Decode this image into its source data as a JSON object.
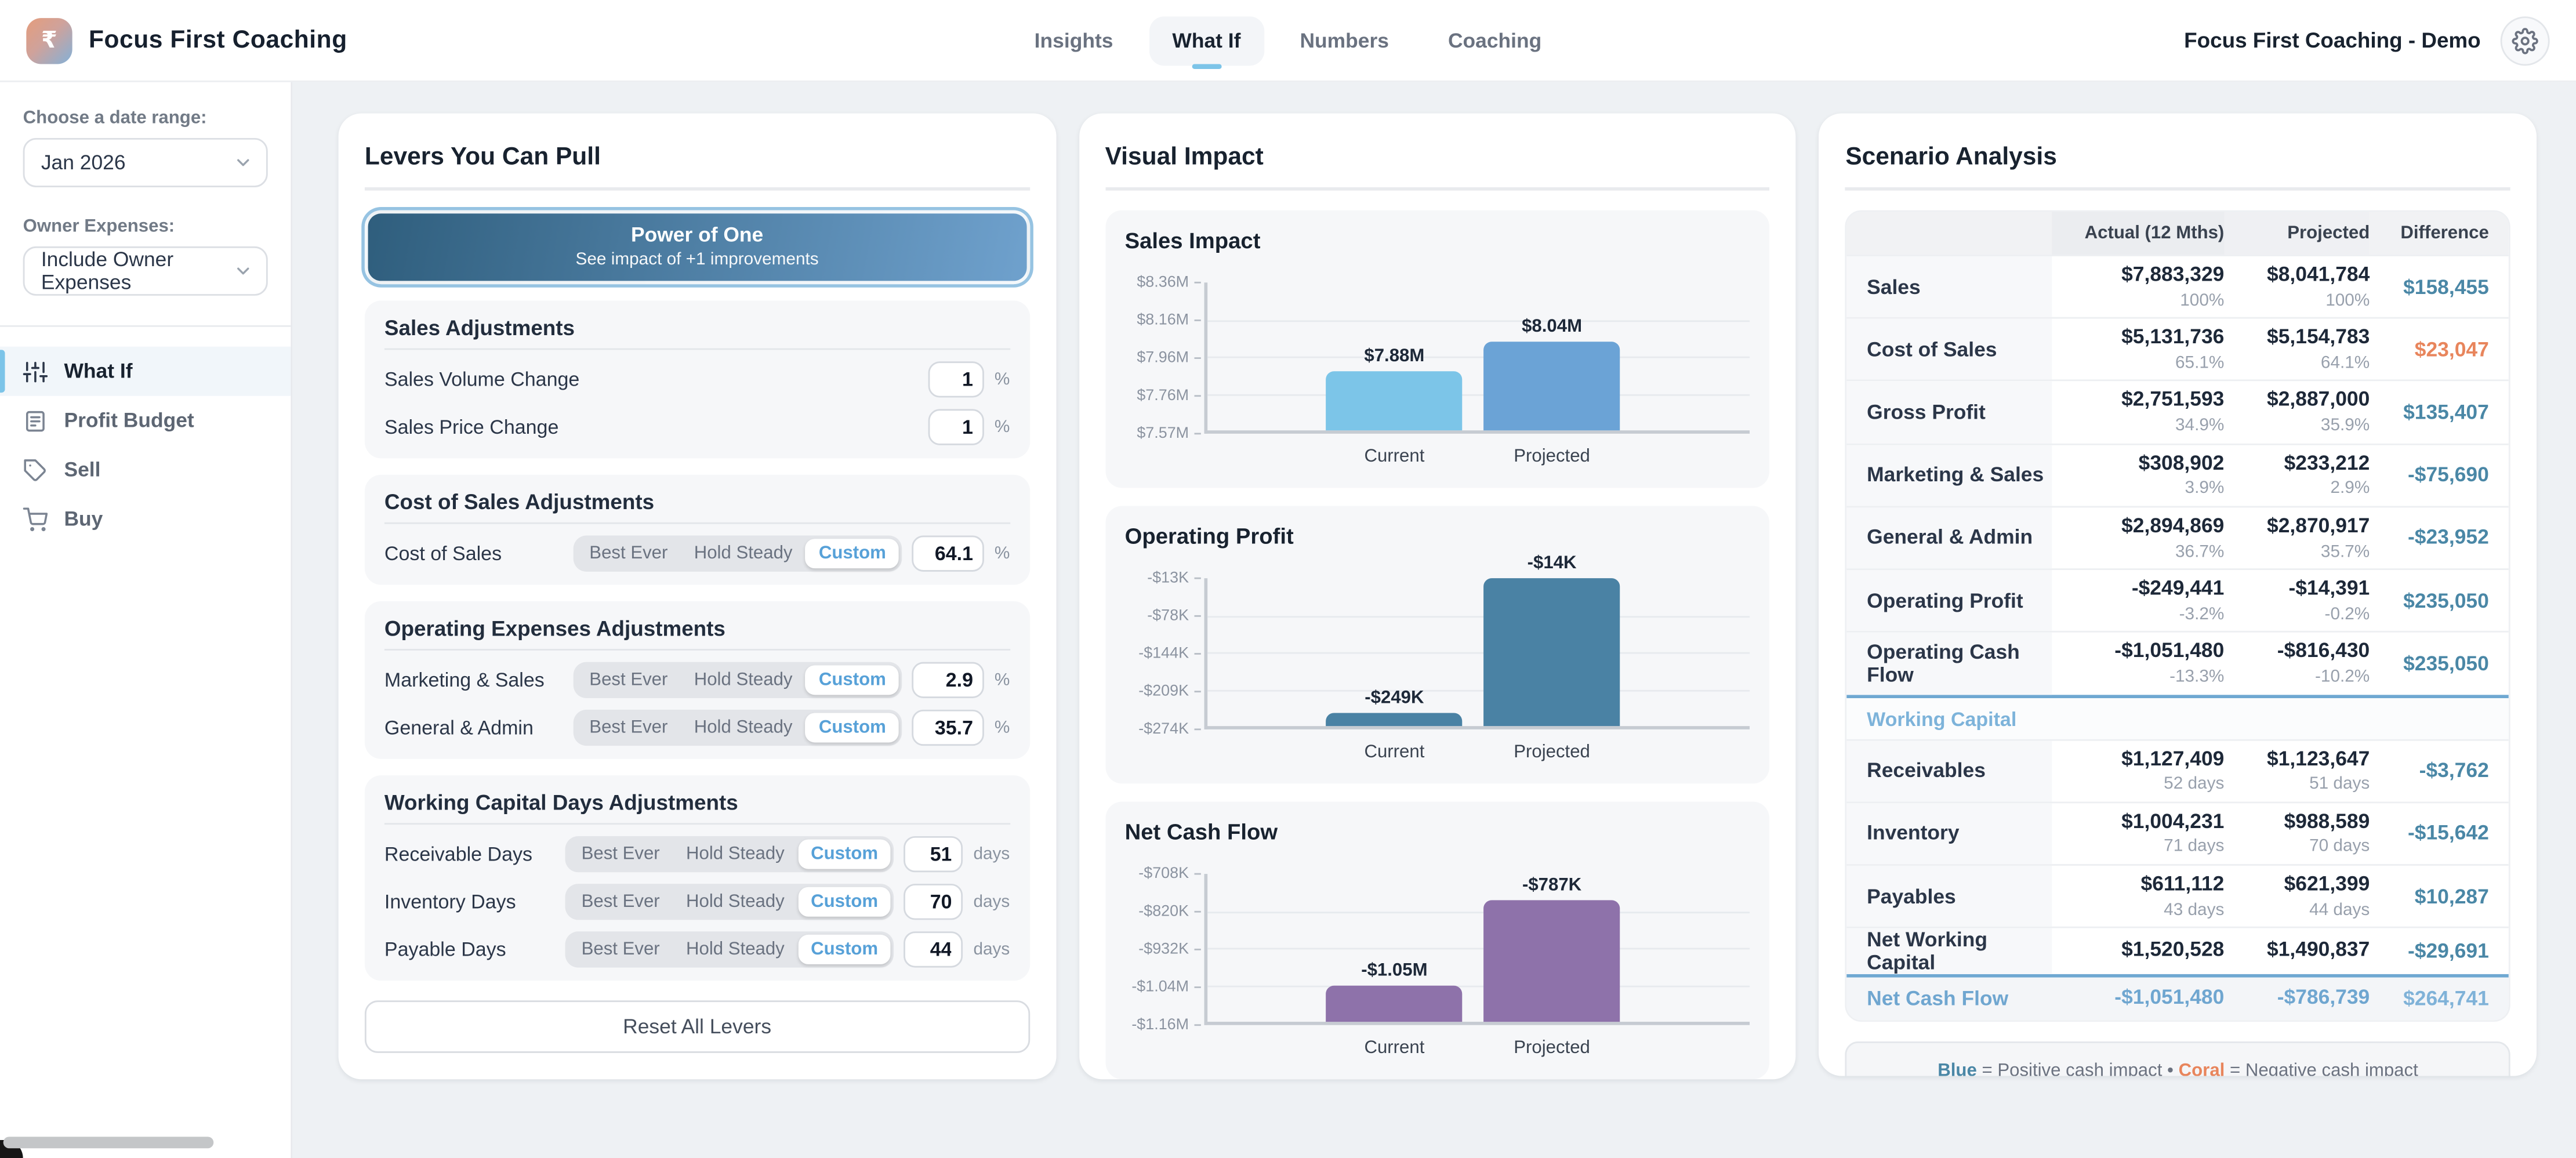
{
  "header": {
    "brand": "Focus First Coaching",
    "logo_glyph": "₹",
    "tabs": [
      {
        "label": "Insights",
        "active": false
      },
      {
        "label": "What If",
        "active": true
      },
      {
        "label": "Numbers",
        "active": false
      },
      {
        "label": "Coaching",
        "active": false
      }
    ],
    "account_name": "Focus First Coaching - Demo"
  },
  "sidebar": {
    "date_range": {
      "label": "Choose a date range:",
      "value": "Jan 2026"
    },
    "owner_expenses": {
      "label": "Owner Expenses:",
      "value": "Include Owner Expenses"
    },
    "menu": [
      {
        "label": "What If",
        "icon": "sliders-icon",
        "active": true
      },
      {
        "label": "Profit Budget",
        "icon": "document-icon",
        "active": false
      },
      {
        "label": "Sell",
        "icon": "tag-icon",
        "active": false
      },
      {
        "label": "Buy",
        "icon": "cart-icon",
        "active": false
      }
    ]
  },
  "levers": {
    "title": "Levers You Can Pull",
    "power_of_one": {
      "title": "Power of One",
      "subtitle": "See impact of +1 improvements"
    },
    "segmented_options": [
      "Best Ever",
      "Hold Steady",
      "Custom"
    ],
    "sections": [
      {
        "title": "Sales Adjustments",
        "rows": [
          {
            "label": "Sales Volume Change",
            "control": "input",
            "value": "1",
            "suffix": "%"
          },
          {
            "label": "Sales Price Change",
            "control": "input",
            "value": "1",
            "suffix": "%"
          }
        ]
      },
      {
        "title": "Cost of Sales Adjustments",
        "rows": [
          {
            "label": "Cost of Sales",
            "control": "segmented",
            "selected": "Custom",
            "value": "64.1",
            "suffix": "%"
          }
        ]
      },
      {
        "title": "Operating Expenses Adjustments",
        "rows": [
          {
            "label": "Marketing & Sales",
            "control": "segmented",
            "selected": "Custom",
            "value": "2.9",
            "suffix": "%"
          },
          {
            "label": "General & Admin",
            "control": "segmented",
            "selected": "Custom",
            "value": "35.7",
            "suffix": "%"
          }
        ]
      },
      {
        "title": "Working Capital Days Adjustments",
        "rows": [
          {
            "label": "Receivable Days",
            "control": "segmented",
            "selected": "Custom",
            "value": "51",
            "suffix": "days"
          },
          {
            "label": "Inventory Days",
            "control": "segmented",
            "selected": "Custom",
            "value": "70",
            "suffix": "days"
          },
          {
            "label": "Payable Days",
            "control": "segmented",
            "selected": "Custom",
            "value": "44",
            "suffix": "days"
          }
        ]
      }
    ],
    "reset_label": "Reset All Levers"
  },
  "visual_impact": {
    "title": "Visual Impact"
  },
  "chart_data": [
    {
      "type": "bar",
      "title": "Sales Impact",
      "categories": [
        "Current",
        "Projected"
      ],
      "values": [
        7883329,
        8041784
      ],
      "value_labels": [
        "$7.88M",
        "$8.04M"
      ],
      "y_ticks": [
        "$8.36M",
        "$8.16M",
        "$7.96M",
        "$7.76M",
        "$7.57M"
      ],
      "ylim": [
        7570000,
        8360000
      ],
      "bar_colors": [
        "#7cc5e8",
        "#6ba3d6"
      ],
      "grid": true,
      "legend_position": "none"
    },
    {
      "type": "bar",
      "title": "Operating Profit",
      "categories": [
        "Current",
        "Projected"
      ],
      "values": [
        -249441,
        -14391
      ],
      "value_labels": [
        "-$249K",
        "-$14K"
      ],
      "y_ticks": [
        "-$13K",
        "-$78K",
        "-$144K",
        "-$209K",
        "-$274K"
      ],
      "ylim": [
        -274000,
        -13000
      ],
      "bar_colors": [
        "#4a82a4",
        "#4a82a4"
      ],
      "grid": true,
      "legend_position": "none"
    },
    {
      "type": "bar",
      "title": "Net Cash Flow",
      "categories": [
        "Current",
        "Projected"
      ],
      "values": [
        -1051480,
        -786739
      ],
      "value_labels": [
        "-$1.05M",
        "-$787K"
      ],
      "y_ticks": [
        "-$708K",
        "-$820K",
        "-$932K",
        "-$1.04M",
        "-$1.16M"
      ],
      "ylim": [
        -1160000,
        -708000
      ],
      "bar_colors": [
        "#8e72aa",
        "#8e72aa"
      ],
      "grid": true,
      "legend_position": "none"
    }
  ],
  "scenario": {
    "title": "Scenario Analysis",
    "columns": [
      "",
      "Actual (12 Mths)",
      "Projected",
      "Difference"
    ],
    "rows": [
      {
        "type": "data",
        "label": "Sales",
        "actual": "$7,883,329",
        "actual_sub": "100%",
        "projected": "$8,041,784",
        "projected_sub": "100%",
        "diff": "$158,455",
        "diff_color": "blue"
      },
      {
        "type": "data",
        "label": "Cost of Sales",
        "actual": "$5,131,736",
        "actual_sub": "65.1%",
        "projected": "$5,154,783",
        "projected_sub": "64.1%",
        "diff": "$23,047",
        "diff_color": "coral"
      },
      {
        "type": "data",
        "label": "Gross Profit",
        "actual": "$2,751,593",
        "actual_sub": "34.9%",
        "projected": "$2,887,000",
        "projected_sub": "35.9%",
        "diff": "$135,407",
        "diff_color": "blue"
      },
      {
        "type": "data",
        "label": "Marketing & Sales",
        "actual": "$308,902",
        "actual_sub": "3.9%",
        "projected": "$233,212",
        "projected_sub": "2.9%",
        "diff": "-$75,690",
        "diff_color": "blue"
      },
      {
        "type": "data",
        "label": "General & Admin",
        "actual": "$2,894,869",
        "actual_sub": "36.7%",
        "projected": "$2,870,917",
        "projected_sub": "35.7%",
        "diff": "-$23,952",
        "diff_color": "blue"
      },
      {
        "type": "data",
        "label": "Operating Profit",
        "actual": "-$249,441",
        "actual_sub": "-3.2%",
        "projected": "-$14,391",
        "projected_sub": "-0.2%",
        "diff": "$235,050",
        "diff_color": "blue"
      },
      {
        "type": "data",
        "label": "Operating Cash Flow",
        "actual": "-$1,051,480",
        "actual_sub": "-13.3%",
        "projected": "-$816,430",
        "projected_sub": "-10.2%",
        "diff": "$235,050",
        "diff_color": "blue"
      },
      {
        "type": "section",
        "label": "Working Capital"
      },
      {
        "type": "data",
        "label": "Receivables",
        "actual": "$1,127,409",
        "actual_sub": "52 days",
        "projected": "$1,123,647",
        "projected_sub": "51 days",
        "diff": "-$3,762",
        "diff_color": "blue"
      },
      {
        "type": "data",
        "label": "Inventory",
        "actual": "$1,004,231",
        "actual_sub": "71 days",
        "projected": "$988,589",
        "projected_sub": "70 days",
        "diff": "-$15,642",
        "diff_color": "blue"
      },
      {
        "type": "data",
        "label": "Payables",
        "actual": "$611,112",
        "actual_sub": "43 days",
        "projected": "$621,399",
        "projected_sub": "44 days",
        "diff": "$10,287",
        "diff_color": "blue"
      },
      {
        "type": "data",
        "label": "Net Working Capital",
        "actual": "$1,520,528",
        "actual_sub": "",
        "projected": "$1,490,837",
        "projected_sub": "",
        "diff": "-$29,691",
        "diff_color": "blue"
      },
      {
        "type": "total",
        "label": "Net Cash Flow",
        "actual": "-$1,051,480",
        "projected": "-$786,739",
        "diff": "$264,741",
        "diff_color": "blue"
      }
    ],
    "legend": {
      "blue_word": "Blue",
      "blue_def": " = Positive cash impact ",
      "bullet": "• ",
      "coral_word": "Coral",
      "coral_def": " = Negative cash impact"
    }
  },
  "colors": {
    "accent_blue": "#7cc4e8",
    "diff_blue": "#4a87a6",
    "coral": "#e8855c",
    "bar_light_blue": "#7cc5e8",
    "bar_blue": "#6ba3d6",
    "bar_steel": "#4a82a4",
    "bar_purple": "#8e72aa",
    "power_gradient_start": "#2f5e7d",
    "power_gradient_end": "#6fa1cd"
  }
}
